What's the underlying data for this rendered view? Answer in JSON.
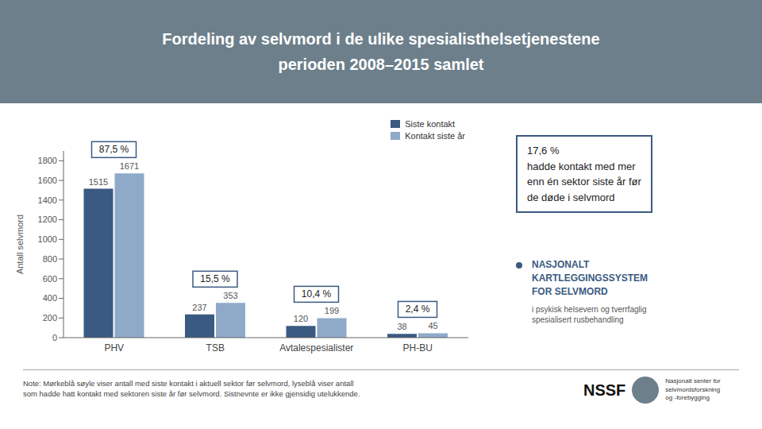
{
  "chart_data": {
    "type": "bar",
    "title": "Fordeling av selvmord i de ulike spesialisthelsetjenestene",
    "subtitle": "perioden 2008–2015 samlet",
    "categories": [
      "PHV",
      "TSB",
      "Avtalespesialister",
      "PH-BU"
    ],
    "series": [
      {
        "name": "Siste kontakt",
        "color": "#3b5a82",
        "values": [
          1515,
          237,
          120,
          38
        ]
      },
      {
        "name": "Kontakt siste år",
        "color": "#8eaac8",
        "values": [
          1671,
          353,
          199,
          45
        ]
      }
    ],
    "ylabel": "Antall selvmord",
    "ylim": [
      0,
      1900
    ],
    "yticks": [
      0,
      200,
      400,
      600,
      800,
      1000,
      1200,
      1400,
      1600,
      1800
    ],
    "grid": false,
    "legend": "upper right",
    "data_labels": true,
    "annotations": [
      {
        "text": "87,5 %",
        "category": "PHV"
      },
      {
        "text": "15,5 %",
        "category": "TSB"
      },
      {
        "text": "10,4 %",
        "category": "Avtalespesialister"
      },
      {
        "text": "2,4 %",
        "category": "PH-BU"
      },
      {
        "text": "17,6 %\nhadde kontakt med mer\nenn én sektor siste år før\nde døde i selvmord"
      },
      {
        "text": "NASJONALT\nKARTLEGGINGSSYSTEM\nFOR SELVMORD"
      },
      {
        "text": "i psykisk helsevern og tverrfaglig\nspesialisert rusbehandling"
      },
      {
        "text": "Note: Mørkeblå søyle viser antall med siste kontakt i aktuell sektor før selvmord, lyseblå viser antall\nsom hadde hatt kontakt med sektoren siste år før selvmord. Sistnevnte er ikke gjensidig utelukkende."
      },
      {
        "text": "NSSF"
      },
      {
        "text": "Nasjonalt senter for\nselvmordsforskning\nog -forebygging"
      }
    ]
  }
}
